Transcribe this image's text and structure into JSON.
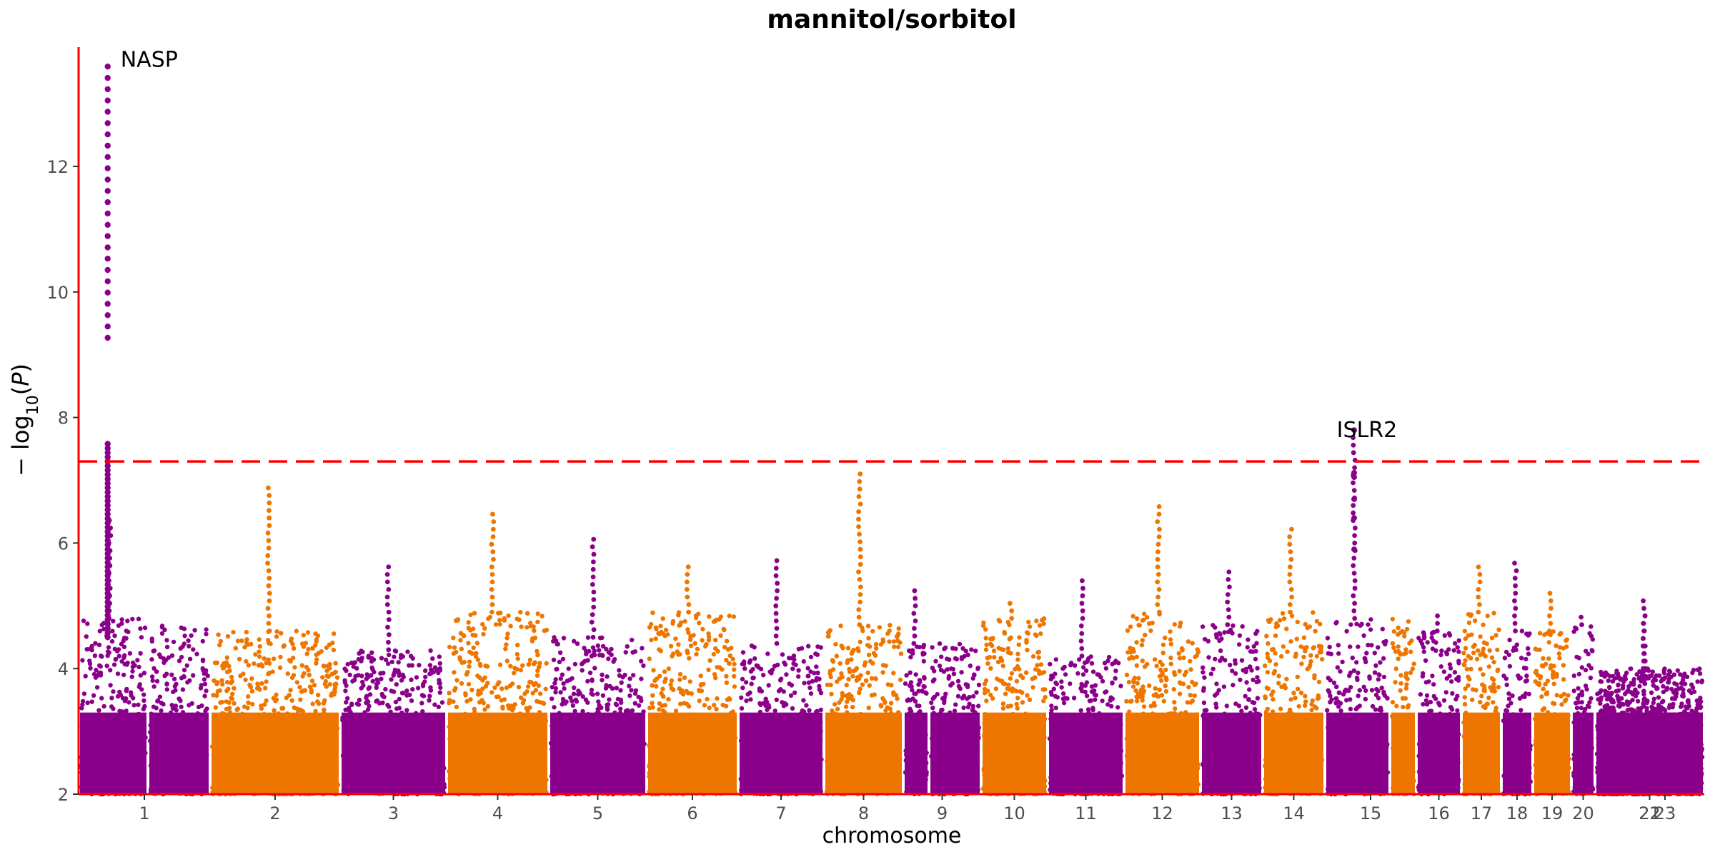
{
  "chart_data": {
    "type": "scatter",
    "subtype": "manhattan",
    "title": "mannitol/sorbitol",
    "xlabel": "chromosome",
    "ylabel": "−log10(P)",
    "ylim": [
      2,
      13.9
    ],
    "yticks": [
      2,
      4,
      6,
      8,
      10,
      12
    ],
    "grid": false,
    "legend": "none",
    "significance_threshold": 7.3,
    "colors": {
      "odd": "#8B008B",
      "even": "#EE7600",
      "threshold": "#FF0000",
      "axis": "#FF0000"
    },
    "chromosomes": [
      {
        "label": "1",
        "peak": 6.4,
        "top": 4.8
      },
      {
        "label": "2",
        "peak": 6.9,
        "top": 4.6
      },
      {
        "label": "3",
        "peak": 5.7,
        "top": 4.3
      },
      {
        "label": "4",
        "peak": 6.5,
        "top": 4.9
      },
      {
        "label": "5",
        "peak": 6.1,
        "top": 4.5
      },
      {
        "label": "6",
        "peak": 5.7,
        "top": 4.9
      },
      {
        "label": "7",
        "peak": 5.8,
        "top": 4.4
      },
      {
        "label": "8",
        "peak": 7.2,
        "top": 4.7
      },
      {
        "label": "9",
        "peak": 5.3,
        "top": 4.4
      },
      {
        "label": "10",
        "peak": 5.1,
        "top": 4.8
      },
      {
        "label": "11",
        "peak": 5.5,
        "top": 4.2
      },
      {
        "label": "12",
        "peak": 6.6,
        "top": 4.9
      },
      {
        "label": "13",
        "peak": 5.6,
        "top": 4.7
      },
      {
        "label": "14",
        "peak": 6.3,
        "top": 4.9
      },
      {
        "label": "15",
        "peak": 7.8,
        "top": 4.8
      },
      {
        "label": "16",
        "peak": 4.9,
        "top": 4.6
      },
      {
        "label": "17",
        "peak": 5.7,
        "top": 4.9
      },
      {
        "label": "18",
        "peak": 5.8,
        "top": 4.6
      },
      {
        "label": "19",
        "peak": 5.3,
        "top": 4.6
      },
      {
        "label": "20",
        "peak": 4.9,
        "top": 4.7
      },
      {
        "label": "21",
        "peak": 4.3,
        "top": 4.0
      },
      {
        "label": "22",
        "peak": 4.9,
        "top": 4.0
      },
      {
        "label": "23",
        "peak": 5.1,
        "top": 3.4
      }
    ],
    "hits": [
      {
        "label": "NASP",
        "chromosome": "1",
        "pos": 0.42,
        "y": 13.7
      },
      {
        "label": "ISLR2",
        "chromosome": "15",
        "pos": 0.45,
        "y": 7.8
      }
    ]
  }
}
